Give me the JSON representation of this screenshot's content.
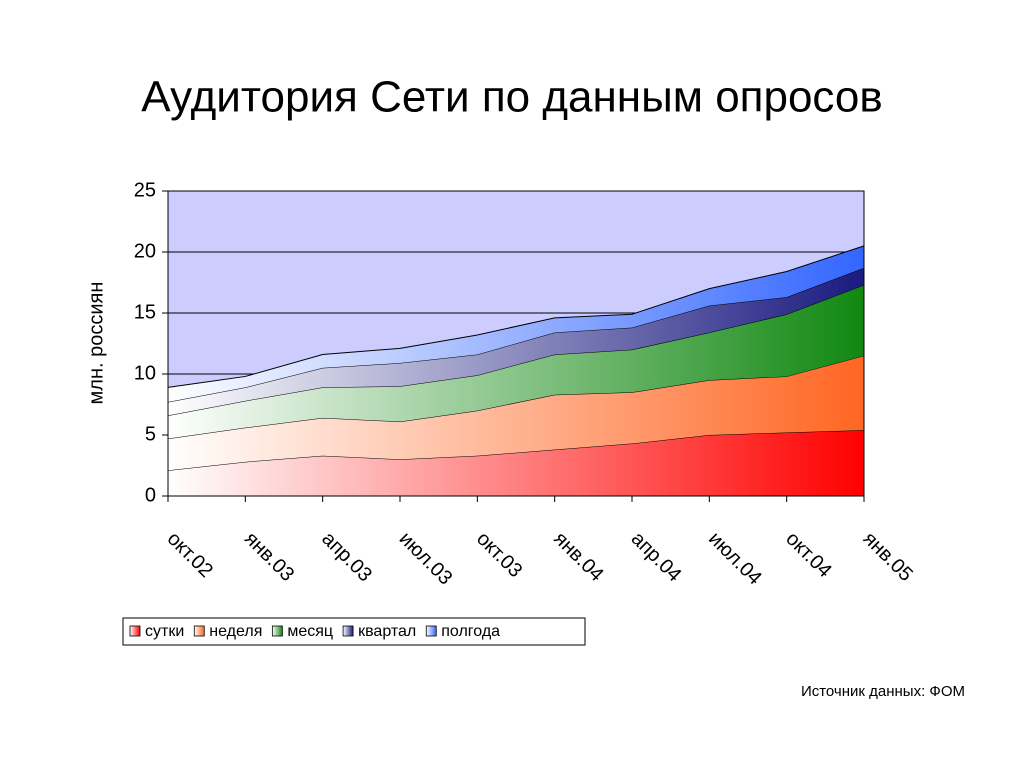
{
  "chart_data": {
    "type": "stacked_area",
    "title": "Аудитория Сети по данным опросов",
    "y_label": "млн. россиян",
    "source": "Источник данных: ФОМ",
    "categories": [
      "окт.02",
      "янв.03",
      "апр.03",
      "июл.03",
      "окт.03",
      "янв.04",
      "апр.04",
      "июл.04",
      "окт.04",
      "янв.05"
    ],
    "series": [
      {
        "name": "сутки",
        "color": "#ff0000",
        "values": [
          2.1,
          2.8,
          3.3,
          3.0,
          3.3,
          3.8,
          4.3,
          5.0,
          5.2,
          5.4
        ]
      },
      {
        "name": "неделя",
        "color": "#ff6622",
        "values": [
          2.6,
          2.8,
          3.1,
          3.1,
          3.7,
          4.5,
          4.2,
          4.5,
          4.6,
          6.1
        ]
      },
      {
        "name": "месяц",
        "color": "#118811",
        "values": [
          1.9,
          2.2,
          2.5,
          2.9,
          2.9,
          3.3,
          3.5,
          3.9,
          5.1,
          5.8
        ]
      },
      {
        "name": "квартал",
        "color": "#1a1a80",
        "values": [
          1.1,
          1.1,
          1.6,
          1.9,
          1.7,
          1.8,
          1.8,
          2.2,
          1.4,
          1.4
        ]
      },
      {
        "name": "полгода",
        "color": "#3366ff",
        "values": [
          1.2,
          0.9,
          1.1,
          1.2,
          1.6,
          1.2,
          1.1,
          1.4,
          2.1,
          1.8
        ]
      }
    ],
    "ylim": [
      0,
      25
    ],
    "yticks": [
      0,
      5,
      10,
      15,
      20,
      25
    ],
    "grid": true,
    "plot_background": "#ccccff"
  }
}
